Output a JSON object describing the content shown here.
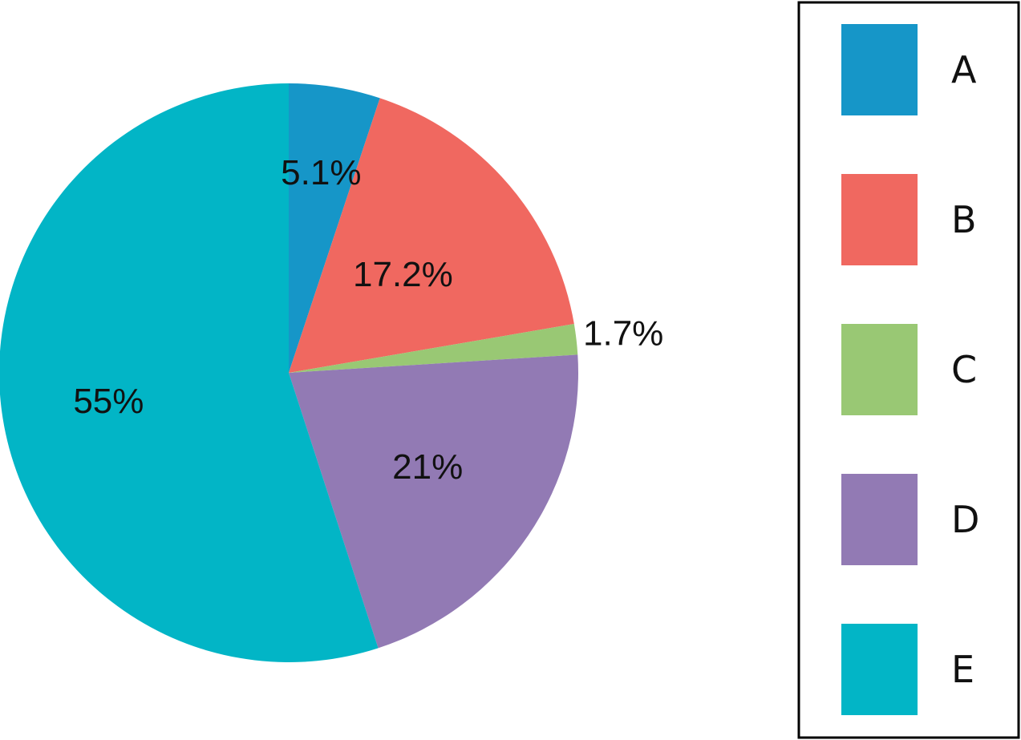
{
  "chart_data": {
    "type": "pie",
    "title": "",
    "start_angle": "12 o'clock",
    "direction": "clockwise",
    "legend_position": "right",
    "slices": [
      {
        "label": "A",
        "value": 5.1,
        "value_label": "5.1%",
        "color": "#1696c8"
      },
      {
        "label": "B",
        "value": 17.2,
        "value_label": "17.2%",
        "color": "#f06860"
      },
      {
        "label": "C",
        "value": 1.7,
        "value_label": "1.7%",
        "color": "#99c874"
      },
      {
        "label": "D",
        "value": 21,
        "value_label": "21%",
        "color": "#927ab4"
      },
      {
        "label": "E",
        "value": 55,
        "value_label": "55%",
        "color": "#02b5c6"
      }
    ]
  }
}
